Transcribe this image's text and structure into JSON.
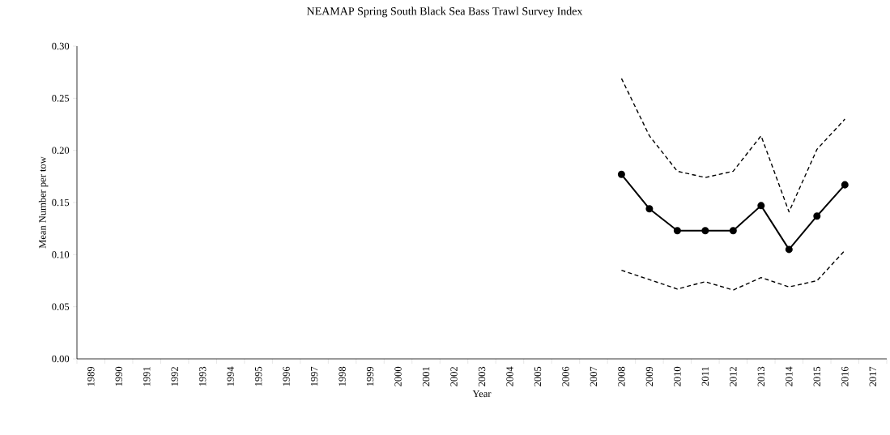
{
  "chart_data": {
    "type": "line",
    "title": "NEAMAP Spring South Black Sea Bass Trawl Survey Index",
    "xlabel": "Year",
    "ylabel": "Mean Number per tow",
    "categories": [
      "1989",
      "1990",
      "1991",
      "1992",
      "1993",
      "1994",
      "1995",
      "1996",
      "1997",
      "1998",
      "1999",
      "2000",
      "2001",
      "2002",
      "2003",
      "2004",
      "2005",
      "2006",
      "2007",
      "2008",
      "2009",
      "2010",
      "2011",
      "2012",
      "2013",
      "2014",
      "2015",
      "2016",
      "2017"
    ],
    "series": [
      {
        "color": "#000000",
        "marker": "circle",
        "line_style": "solid",
        "values": [
          null,
          null,
          null,
          null,
          null,
          null,
          null,
          null,
          null,
          null,
          null,
          null,
          null,
          null,
          null,
          null,
          null,
          null,
          null,
          0.177,
          0.144,
          0.123,
          0.123,
          0.123,
          0.147,
          0.105,
          0.137,
          0.167,
          null
        ]
      },
      {
        "color": "#000000",
        "marker": "none",
        "line_style": "dashed",
        "values": [
          null,
          null,
          null,
          null,
          null,
          null,
          null,
          null,
          null,
          null,
          null,
          null,
          null,
          null,
          null,
          null,
          null,
          null,
          null,
          0.269,
          0.214,
          0.18,
          0.174,
          0.18,
          0.214,
          0.141,
          0.201,
          0.23,
          null
        ]
      },
      {
        "color": "#000000",
        "marker": "none",
        "line_style": "dashed",
        "values": [
          null,
          null,
          null,
          null,
          null,
          null,
          null,
          null,
          null,
          null,
          null,
          null,
          null,
          null,
          null,
          null,
          null,
          null,
          null,
          0.085,
          0.076,
          0.067,
          0.074,
          0.066,
          0.078,
          0.069,
          0.075,
          0.104,
          null
        ]
      }
    ],
    "ylim": [
      0,
      0.3
    ],
    "yticks": [
      {
        "value": 0,
        "label": "0.00"
      },
      {
        "value": 0.05,
        "label": "0.05"
      },
      {
        "value": 0.1,
        "label": "0.10"
      },
      {
        "value": 0.15,
        "label": "0.15"
      },
      {
        "value": 0.2,
        "label": "0.20"
      },
      {
        "value": 0.25,
        "label": "0.25"
      },
      {
        "value": 0.3,
        "label": "0.30"
      }
    ],
    "grid": false,
    "legend": false
  }
}
